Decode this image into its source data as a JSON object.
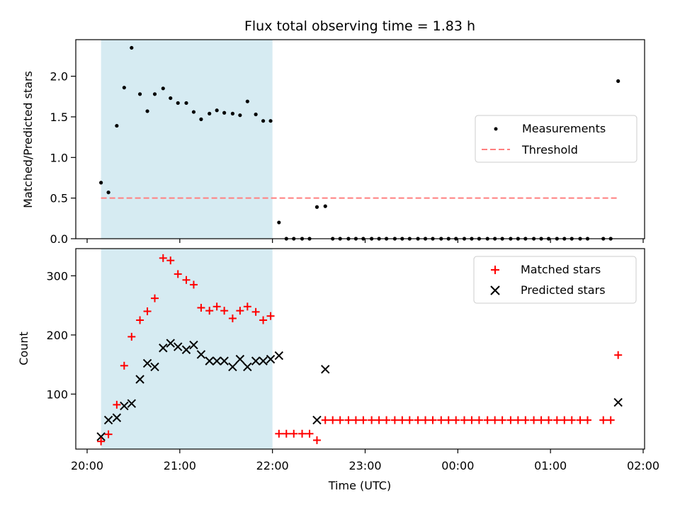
{
  "chart_data": {
    "title": "Flux total observing time = 1.83 h",
    "xlabel": "Time (UTC)",
    "x_tick_labels": [
      "20:00",
      "21:00",
      "22:00",
      "23:00",
      "00:00",
      "01:00",
      "02:00"
    ],
    "shaded_span": {
      "start_hours": 20.15,
      "end_hours": 22.0,
      "color": "#add8e6"
    },
    "colors": {
      "measurements": "#000000",
      "threshold": "#ff7f7f",
      "matched": "#ff0000",
      "predicted": "#000000",
      "shade": "#add8e6"
    },
    "panels": [
      {
        "type": "scatter",
        "ylabel": "Matched/Predicted stars",
        "ylim": [
          0,
          2.45
        ],
        "y_ticks": [
          0.0,
          0.5,
          1.0,
          1.5,
          2.0
        ],
        "y_tick_labels": [
          "0.0",
          "0.5",
          "1.0",
          "1.5",
          "2.0"
        ],
        "legend": [
          "Measurements",
          "Threshold"
        ],
        "legend_placement": "center-right",
        "threshold": {
          "value": 0.5,
          "x_start_hours": 20.15,
          "x_end_hours": 25.73
        },
        "series": [
          {
            "name": "Measurements",
            "x_hours": [
              20.15,
              20.23,
              20.32,
              20.4,
              20.48,
              20.57,
              20.65,
              20.73,
              20.82,
              20.9,
              20.98,
              21.07,
              21.15,
              21.23,
              21.32,
              21.4,
              21.48,
              21.57,
              21.65,
              21.73,
              21.82,
              21.9,
              21.98,
              22.07,
              22.15,
              22.23,
              22.32,
              22.4,
              22.48,
              22.57,
              22.65,
              22.73,
              22.82,
              22.9,
              22.98,
              23.07,
              23.15,
              23.23,
              23.32,
              23.4,
              23.48,
              23.57,
              23.65,
              23.73,
              23.82,
              23.9,
              23.98,
              24.07,
              24.15,
              24.23,
              24.32,
              24.4,
              24.48,
              24.57,
              24.65,
              24.73,
              24.82,
              24.9,
              24.98,
              25.07,
              25.15,
              25.23,
              25.32,
              25.4,
              25.57,
              25.65,
              25.73
            ],
            "y": [
              0.69,
              0.57,
              1.39,
              1.86,
              2.35,
              1.78,
              1.57,
              1.78,
              1.85,
              1.73,
              1.67,
              1.67,
              1.56,
              1.47,
              1.54,
              1.58,
              1.55,
              1.54,
              1.52,
              1.69,
              1.53,
              1.45,
              1.45,
              0.2,
              0,
              0,
              0,
              0,
              0.39,
              0.4,
              0,
              0,
              0,
              0,
              0,
              0,
              0,
              0,
              0,
              0,
              0,
              0,
              0,
              0,
              0,
              0,
              0,
              0,
              0,
              0,
              0,
              0,
              0,
              0,
              0,
              0,
              0,
              0,
              0,
              0,
              0,
              0,
              0,
              0,
              0,
              0,
              1.94
            ]
          }
        ]
      },
      {
        "type": "scatter",
        "ylabel": "Count",
        "ylim": [
          7,
          346
        ],
        "y_ticks": [
          100,
          200,
          300
        ],
        "y_tick_labels": [
          "100",
          "200",
          "300"
        ],
        "legend": [
          "Matched stars",
          "Predicted stars"
        ],
        "legend_placement": "top-right",
        "series": [
          {
            "name": "Matched stars",
            "x_hours": [
              20.15,
              20.23,
              20.32,
              20.4,
              20.48,
              20.57,
              20.65,
              20.73,
              20.82,
              20.9,
              20.98,
              21.07,
              21.15,
              21.23,
              21.32,
              21.4,
              21.48,
              21.57,
              21.65,
              21.73,
              21.82,
              21.9,
              21.98,
              22.07,
              22.15,
              22.23,
              22.32,
              22.4,
              22.48,
              22.57,
              22.65,
              22.73,
              22.82,
              22.9,
              22.98,
              23.07,
              23.15,
              23.23,
              23.32,
              23.4,
              23.48,
              23.57,
              23.65,
              23.73,
              23.82,
              23.9,
              23.98,
              24.07,
              24.15,
              24.23,
              24.32,
              24.4,
              24.48,
              24.57,
              24.65,
              24.73,
              24.82,
              24.9,
              24.98,
              25.07,
              25.15,
              25.23,
              25.32,
              25.4,
              25.57,
              25.65,
              25.73
            ],
            "y": [
              20,
              32,
              82,
              148,
              197,
              225,
              240,
              262,
              330,
              326,
              303,
              293,
              285,
              246,
              241,
              248,
              241,
              228,
              241,
              248,
              239,
              225,
              232,
              33,
              33,
              33,
              33,
              33,
              22,
              56,
              56,
              56,
              56,
              56,
              56,
              56,
              56,
              56,
              56,
              56,
              56,
              56,
              56,
              56,
              56,
              56,
              56,
              56,
              56,
              56,
              56,
              56,
              56,
              56,
              56,
              56,
              56,
              56,
              56,
              56,
              56,
              56,
              56,
              56,
              56,
              56,
              166
            ]
          },
          {
            "name": "Predicted stars",
            "x_hours": [
              20.15,
              20.23,
              20.32,
              20.4,
              20.48,
              20.57,
              20.65,
              20.73,
              20.82,
              20.9,
              20.98,
              21.07,
              21.15,
              21.23,
              21.32,
              21.4,
              21.48,
              21.57,
              21.65,
              21.73,
              21.82,
              21.9,
              21.98,
              22.07,
              22.48,
              22.57,
              25.73
            ],
            "y": [
              28,
              56,
              60,
              80,
              84,
              125,
              152,
              146,
              178,
              186,
              180,
              175,
              183,
              167,
              156,
              156,
              156,
              146,
              159,
              146,
              156,
              156,
              159,
              165,
              56,
              142,
              86
            ]
          }
        ]
      }
    ]
  }
}
